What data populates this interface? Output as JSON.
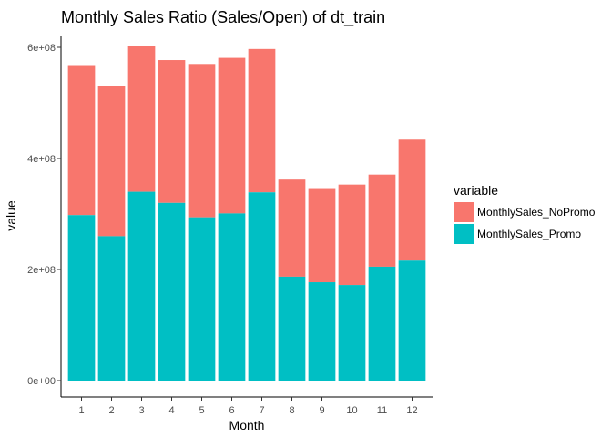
{
  "colors": {
    "series_0": "#F8766D",
    "series_1": "#00BFC4"
  },
  "chart_data": {
    "type": "bar",
    "stacked": true,
    "title": "Monthly Sales Ratio (Sales/Open) of dt_train",
    "xlabel": "Month",
    "ylabel": "value",
    "categories": [
      "1",
      "2",
      "3",
      "4",
      "5",
      "6",
      "7",
      "8",
      "9",
      "10",
      "11",
      "12"
    ],
    "ylim": [
      0,
      600000000
    ],
    "yticks": [
      0,
      200000000,
      400000000,
      600000000
    ],
    "ytick_labels": [
      "0e+00",
      "2e+08",
      "4e+08",
      "6e+08"
    ],
    "legend_title": "variable",
    "legend_position": "right",
    "grid": false,
    "series": [
      {
        "name": "MonthlySales_Promo",
        "values": [
          298000000,
          260000000,
          340000000,
          320000000,
          294000000,
          301000000,
          339000000,
          187000000,
          177000000,
          172000000,
          205000000,
          216000000
        ]
      },
      {
        "name": "MonthlySales_NoPromo",
        "values": [
          270000000,
          271000000,
          262000000,
          257000000,
          276000000,
          280000000,
          258000000,
          175000000,
          168000000,
          181000000,
          166000000,
          218000000
        ]
      }
    ],
    "legend_order": [
      "MonthlySales_NoPromo",
      "MonthlySales_Promo"
    ]
  }
}
